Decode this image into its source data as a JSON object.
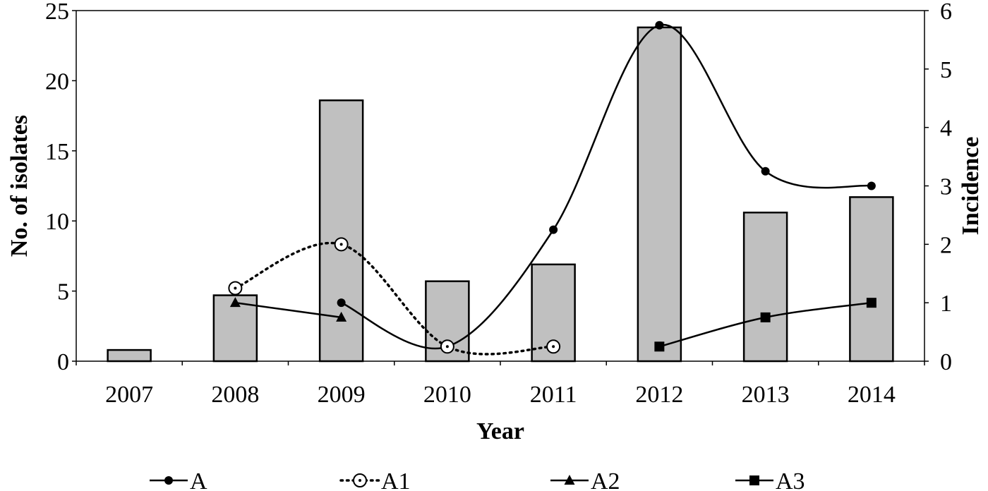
{
  "chart_data": {
    "type": "bar",
    "categories": [
      "2007",
      "2008",
      "2009",
      "2010",
      "2011",
      "2012",
      "2013",
      "2014"
    ],
    "bars": {
      "axis": "left",
      "values": [
        0.8,
        4.7,
        18.6,
        5.7,
        6.9,
        23.8,
        10.6,
        11.7
      ],
      "color": "#c0c0c0"
    },
    "series": [
      {
        "name": "A",
        "axis": "right",
        "marker": "circle",
        "line": "solid",
        "values": [
          null,
          null,
          1,
          0.25,
          2.25,
          5.75,
          3.25,
          3
        ]
      },
      {
        "name": "A1",
        "axis": "right",
        "marker": "circle-dot-open",
        "line": "dotted",
        "values": [
          null,
          1.25,
          2,
          0.25,
          0.25,
          null,
          null,
          null
        ]
      },
      {
        "name": "A2",
        "axis": "right",
        "marker": "triangle",
        "line": "solid",
        "values": [
          null,
          1,
          0.75,
          null,
          null,
          null,
          null,
          null
        ]
      },
      {
        "name": "A3",
        "axis": "right",
        "marker": "square",
        "line": "solid",
        "values": [
          null,
          null,
          null,
          null,
          null,
          0.25,
          0.75,
          1
        ]
      }
    ],
    "xlabel": "Year",
    "ylabel": "No. of isolates",
    "y2label": "Incidence",
    "ylim": [
      0,
      25
    ],
    "y2lim": [
      0,
      6
    ],
    "yticks": [
      "0",
      "5",
      "10",
      "15",
      "20",
      "25"
    ],
    "y2ticks": [
      "0",
      "1",
      "2",
      "3",
      "4",
      "5",
      "6"
    ],
    "grid": false,
    "legend": "bottom"
  }
}
